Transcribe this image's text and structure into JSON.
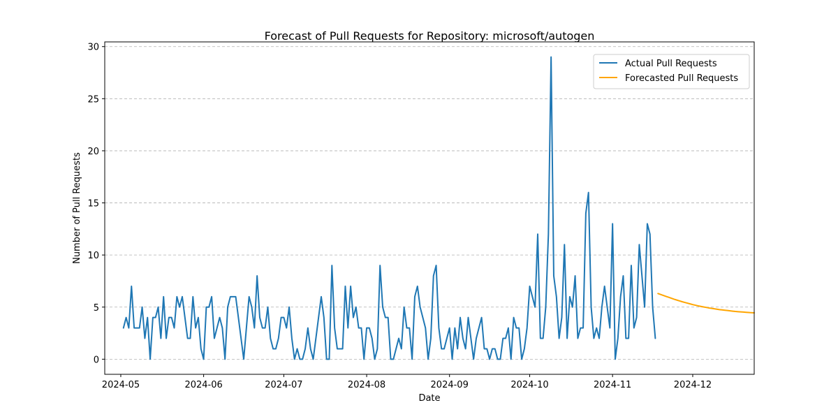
{
  "chart_data": {
    "type": "line",
    "title": "Forecast of Pull Requests for Repository: microsoft/autogen",
    "xlabel": "Date",
    "ylabel": "Number of Pull Requests",
    "x_ticks": [
      "2024-05",
      "2024-06",
      "2024-07",
      "2024-08",
      "2024-09",
      "2024-10",
      "2024-11",
      "2024-12"
    ],
    "y_ticks": [
      0,
      5,
      10,
      15,
      20,
      25,
      30
    ],
    "xlim": [
      "2024-04-25",
      "2024-12-24"
    ],
    "ylim": [
      -1.45,
      30.45
    ],
    "grid": "horizontal-dashed",
    "legend_position": "upper-right",
    "series": [
      {
        "name": "Actual Pull Requests",
        "color": "#1f77b4",
        "start_date": "2024-05-02",
        "values": [
          3,
          4,
          3,
          7,
          3,
          3,
          3,
          5,
          2,
          4,
          0,
          4,
          4,
          5,
          2,
          6,
          2,
          4,
          4,
          3,
          6,
          5,
          6,
          4,
          2,
          2,
          6,
          3,
          4,
          1,
          0,
          5,
          5,
          6,
          2,
          3,
          4,
          3,
          0,
          5,
          6,
          6,
          6,
          4,
          2,
          0,
          3,
          6,
          5,
          3,
          8,
          4,
          3,
          3,
          5,
          2,
          1,
          1,
          2,
          4,
          4,
          3,
          5,
          2,
          0,
          1,
          0,
          0,
          1,
          3,
          1,
          0,
          2,
          4,
          6,
          4,
          0,
          0,
          9,
          3,
          1,
          1,
          1,
          7,
          3,
          7,
          4,
          5,
          3,
          3,
          0,
          3,
          3,
          2,
          0,
          1,
          9,
          5,
          4,
          4,
          0,
          0,
          1,
          2,
          1,
          5,
          3,
          3,
          0,
          6,
          7,
          5,
          4,
          3,
          0,
          2,
          8,
          9,
          3,
          1,
          1,
          2,
          3,
          0,
          3,
          1,
          4,
          2,
          1,
          4,
          2,
          0,
          2,
          3,
          4,
          1,
          1,
          0,
          1,
          1,
          0,
          0,
          2,
          2,
          3,
          0,
          4,
          3,
          3,
          0,
          1,
          3,
          7,
          6,
          5,
          12,
          2,
          2,
          5,
          12,
          29,
          8,
          6,
          2,
          4,
          11,
          2,
          6,
          5,
          8,
          2,
          3,
          3,
          14,
          16,
          5,
          2,
          3,
          2,
          5,
          7,
          5,
          3,
          13,
          0,
          2,
          6,
          8,
          2,
          2,
          9,
          3,
          4,
          11,
          8,
          5,
          13,
          12,
          5,
          2
        ]
      },
      {
        "name": "Forecasted Pull Requests",
        "color": "#ffa500",
        "start_date": "2024-11-18",
        "values": [
          6.3,
          6.21,
          6.12,
          6.03,
          5.94,
          5.85,
          5.76,
          5.68,
          5.6,
          5.52,
          5.45,
          5.38,
          5.31,
          5.24,
          5.18,
          5.12,
          5.07,
          5.02,
          4.97,
          4.92,
          4.88,
          4.84,
          4.8,
          4.76,
          4.73,
          4.7,
          4.67,
          4.64,
          4.61,
          4.58,
          4.56,
          4.54,
          4.52,
          4.5,
          4.48,
          4.46,
          4.45
        ]
      }
    ]
  }
}
